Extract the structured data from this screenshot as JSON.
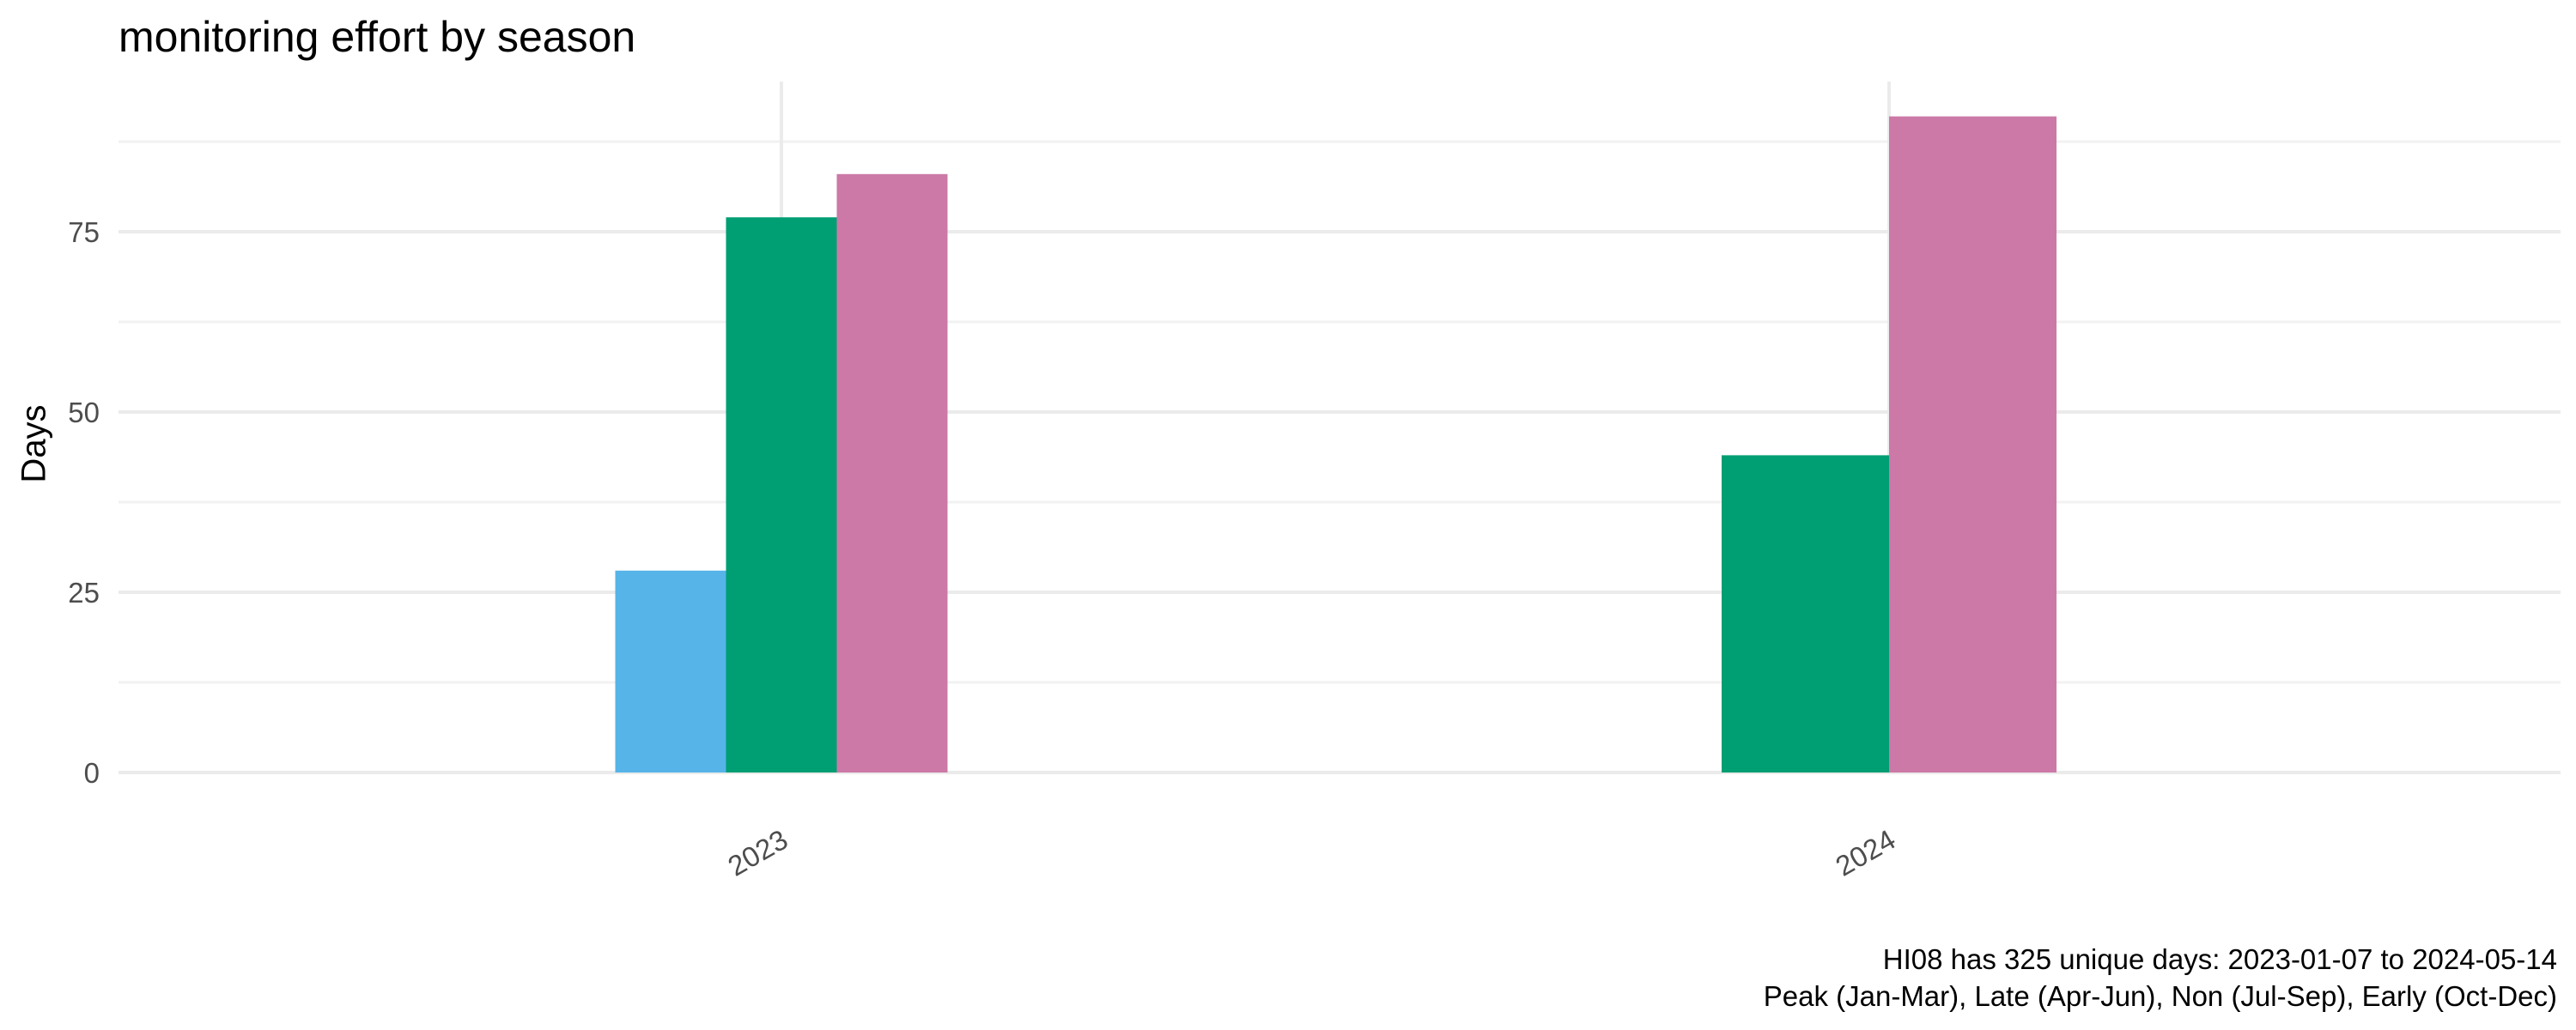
{
  "chart_data": {
    "type": "bar",
    "title": "monitoring effort by season",
    "xlabel": "",
    "ylabel": "Days",
    "categories": [
      "2023",
      "2024"
    ],
    "yticks": [
      0,
      25,
      50,
      75
    ],
    "ylim": [
      0,
      95
    ],
    "grid": true,
    "series": [
      {
        "color": "#56B4E9",
        "values": [
          28,
          0
        ]
      },
      {
        "color": "#009E73",
        "values": [
          77,
          44
        ]
      },
      {
        "color": "#CC79A7",
        "values": [
          83,
          91
        ]
      }
    ],
    "caption": [
      "HI08 has 325 unique days: 2023-01-07 to 2024-05-14",
      "Peak (Jan-Mar), Late (Apr-Jun), Non (Jul-Sep), Early (Oct-Dec)"
    ]
  }
}
